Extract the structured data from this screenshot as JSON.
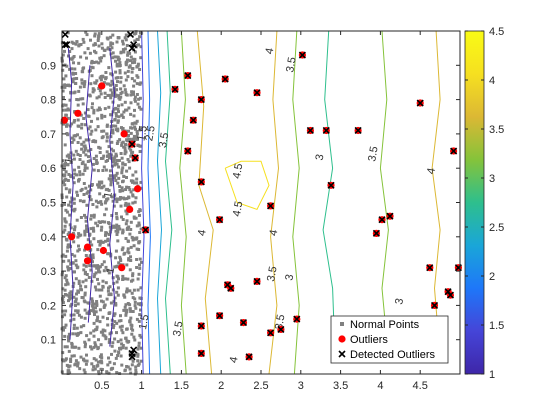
{
  "chart_data": {
    "type": "scatter",
    "title": "",
    "xlabel": "",
    "ylabel": "",
    "xlim": [
      0,
      5.0
    ],
    "ylim": [
      0,
      1.0
    ],
    "xticks": [
      "0.5",
      "1",
      "1.5",
      "2",
      "2.5",
      "3",
      "3.5",
      "4",
      "4.5"
    ],
    "yticks": [
      "0.1",
      "0.2",
      "0.3",
      "0.4",
      "0.5",
      "0.6",
      "0.7",
      "0.8",
      "0.9"
    ],
    "colorbar": {
      "range": [
        1,
        4.5
      ],
      "ticks": [
        "1",
        "1.5",
        "2",
        "2.5",
        "3",
        "3.5",
        "4",
        "4.5"
      ],
      "colormap": [
        "#3e26a8",
        "#4545d8",
        "#1e77f9",
        "#1aa6d8",
        "#2ebf8d",
        "#85c33a",
        "#dcb834",
        "#f6e020",
        "#f9fb15"
      ]
    },
    "legend": {
      "location": "bottom-right",
      "entries": [
        "Normal Points",
        "Outliers",
        "Detected Outliers"
      ]
    },
    "series": [
      {
        "name": "Normal Points",
        "marker": "square",
        "color": "#808080",
        "x_range": [
          0,
          1
        ],
        "y_range": [
          0,
          1
        ],
        "count": "dense"
      },
      {
        "name": "Outliers",
        "marker": "circle",
        "color": "#ff0000",
        "points": [
          [
            0.03,
            0.74
          ],
          [
            0.2,
            0.76
          ],
          [
            0.5,
            0.84
          ],
          [
            0.12,
            0.4
          ],
          [
            0.32,
            0.37
          ],
          [
            0.32,
            0.33
          ],
          [
            0.52,
            0.36
          ],
          [
            0.78,
            0.7
          ],
          [
            0.88,
            0.67
          ],
          [
            0.85,
            0.48
          ],
          [
            0.95,
            0.54
          ],
          [
            0.75,
            0.31
          ],
          [
            0.92,
            0.63
          ],
          [
            1.05,
            0.42
          ],
          [
            1.42,
            0.83
          ],
          [
            1.58,
            0.87
          ],
          [
            1.58,
            0.65
          ],
          [
            1.65,
            0.74
          ],
          [
            1.75,
            0.8
          ],
          [
            1.75,
            0.56
          ],
          [
            1.98,
            0.45
          ],
          [
            2.05,
            0.86
          ],
          [
            2.08,
            0.26
          ],
          [
            2.12,
            0.25
          ],
          [
            2.45,
            0.82
          ],
          [
            2.45,
            0.27
          ],
          [
            2.62,
            0.49
          ],
          [
            2.62,
            0.12
          ],
          [
            1.75,
            0.14
          ],
          [
            1.75,
            0.06
          ],
          [
            1.98,
            0.17
          ],
          [
            2.28,
            0.15
          ],
          [
            2.35,
            0.05
          ],
          [
            2.75,
            0.13
          ],
          [
            2.95,
            0.16
          ],
          [
            3.02,
            0.93
          ],
          [
            3.12,
            0.71
          ],
          [
            3.32,
            0.71
          ],
          [
            3.38,
            0.55
          ],
          [
            3.72,
            0.71
          ],
          [
            3.95,
            0.41
          ],
          [
            4.02,
            0.45
          ],
          [
            4.12,
            0.46
          ],
          [
            4.5,
            0.79
          ],
          [
            4.62,
            0.31
          ],
          [
            4.68,
            0.2
          ],
          [
            4.85,
            0.24
          ],
          [
            4.88,
            0.23
          ],
          [
            4.98,
            0.31
          ],
          [
            4.92,
            0.65
          ]
        ]
      },
      {
        "name": "Detected Outliers",
        "marker": "x",
        "color": "#000000",
        "points": [
          [
            0.04,
            0.99
          ],
          [
            0.04,
            0.96
          ],
          [
            0.06,
            0.96
          ],
          [
            0.86,
            0.99
          ],
          [
            0.88,
            0.95
          ],
          [
            0.9,
            0.96
          ],
          [
            0.88,
            0.06
          ],
          [
            0.9,
            0.07
          ],
          [
            0.88,
            0.05
          ],
          [
            1.42,
            0.83
          ],
          [
            1.58,
            0.87
          ],
          [
            1.58,
            0.65
          ],
          [
            1.65,
            0.74
          ],
          [
            1.75,
            0.8
          ],
          [
            1.75,
            0.56
          ],
          [
            1.98,
            0.45
          ],
          [
            2.05,
            0.86
          ],
          [
            2.08,
            0.26
          ],
          [
            2.12,
            0.25
          ],
          [
            2.45,
            0.82
          ],
          [
            2.45,
            0.27
          ],
          [
            2.62,
            0.49
          ],
          [
            2.62,
            0.12
          ],
          [
            1.75,
            0.14
          ],
          [
            1.75,
            0.06
          ],
          [
            1.98,
            0.17
          ],
          [
            2.28,
            0.15
          ],
          [
            2.35,
            0.05
          ],
          [
            2.75,
            0.13
          ],
          [
            2.95,
            0.16
          ],
          [
            3.02,
            0.93
          ],
          [
            3.12,
            0.71
          ],
          [
            3.32,
            0.71
          ],
          [
            3.38,
            0.55
          ],
          [
            3.72,
            0.71
          ],
          [
            3.95,
            0.41
          ],
          [
            4.02,
            0.45
          ],
          [
            4.12,
            0.46
          ],
          [
            4.5,
            0.79
          ],
          [
            4.62,
            0.31
          ],
          [
            4.68,
            0.2
          ],
          [
            4.85,
            0.24
          ],
          [
            4.88,
            0.23
          ],
          [
            4.98,
            0.31
          ],
          [
            4.92,
            0.65
          ],
          [
            1.05,
            0.42
          ],
          [
            0.88,
            0.67
          ],
          [
            0.92,
            0.63
          ]
        ]
      }
    ],
    "contours": [
      {
        "level": 1,
        "color": "#3e26a8",
        "points": [
          [
            0.08,
            0.95
          ],
          [
            0.12,
            0.85
          ],
          [
            0.1,
            0.7
          ],
          [
            0.14,
            0.55
          ],
          [
            0.1,
            0.4
          ],
          [
            0.14,
            0.25
          ],
          [
            0.1,
            0.1
          ]
        ]
      },
      {
        "level": 1,
        "color": "#3e26a8",
        "points": [
          [
            0.35,
            0.9
          ],
          [
            0.3,
            0.75
          ],
          [
            0.38,
            0.6
          ],
          [
            0.32,
            0.45
          ],
          [
            0.38,
            0.3
          ],
          [
            0.33,
            0.15
          ]
        ]
      },
      {
        "level": 1,
        "color": "#3e26a8",
        "points": [
          [
            0.6,
            0.95
          ],
          [
            0.66,
            0.82
          ],
          [
            0.6,
            0.68
          ],
          [
            0.66,
            0.52
          ],
          [
            0.6,
            0.38
          ],
          [
            0.66,
            0.22
          ],
          [
            0.6,
            0.08
          ]
        ]
      },
      {
        "level": 1.5,
        "color": "#4545d8",
        "points": [
          [
            1.0,
            1.0
          ],
          [
            1.02,
            0.8
          ],
          [
            1.0,
            0.6
          ],
          [
            1.03,
            0.4
          ],
          [
            1.0,
            0.2
          ],
          [
            1.02,
            0.0
          ]
        ]
      },
      {
        "level": 2,
        "color": "#1e77f9",
        "points": [
          [
            1.08,
            1.0
          ],
          [
            1.1,
            0.8
          ],
          [
            1.08,
            0.6
          ],
          [
            1.11,
            0.4
          ],
          [
            1.08,
            0.2
          ],
          [
            1.1,
            0.0
          ]
        ]
      },
      {
        "level": 2.5,
        "color": "#1aa6d8",
        "points": [
          [
            1.2,
            1.0
          ],
          [
            1.24,
            0.82
          ],
          [
            1.2,
            0.62
          ],
          [
            1.25,
            0.42
          ],
          [
            1.2,
            0.22
          ],
          [
            1.24,
            0.0
          ]
        ]
      },
      {
        "level": 3,
        "color": "#2ebf8d",
        "points": [
          [
            1.32,
            1.0
          ],
          [
            1.36,
            0.82
          ],
          [
            1.3,
            0.62
          ],
          [
            1.38,
            0.42
          ],
          [
            1.3,
            0.22
          ],
          [
            1.36,
            0.0
          ]
        ]
      },
      {
        "level": 3.5,
        "color": "#85c33a",
        "points": [
          [
            1.5,
            1.0
          ],
          [
            1.55,
            0.8
          ],
          [
            1.48,
            0.6
          ],
          [
            1.56,
            0.4
          ],
          [
            1.5,
            0.2
          ],
          [
            1.56,
            0.0
          ]
        ]
      },
      {
        "level": 4,
        "color": "#dcb834",
        "points": [
          [
            1.7,
            1.0
          ],
          [
            1.78,
            0.78
          ],
          [
            1.72,
            0.55
          ],
          [
            1.9,
            0.42
          ],
          [
            1.8,
            0.22
          ],
          [
            1.88,
            0.0
          ]
        ]
      },
      {
        "level": 4.5,
        "color": "#f6e020",
        "points": [
          [
            2.05,
            0.6
          ],
          [
            2.2,
            0.5
          ],
          [
            2.45,
            0.48
          ],
          [
            2.6,
            0.55
          ],
          [
            2.5,
            0.62
          ],
          [
            2.25,
            0.62
          ],
          [
            2.05,
            0.6
          ]
        ]
      },
      {
        "level": 4,
        "color": "#dcb834",
        "points": [
          [
            2.7,
            1.0
          ],
          [
            2.65,
            0.8
          ],
          [
            2.72,
            0.6
          ],
          [
            2.62,
            0.4
          ],
          [
            2.7,
            0.2
          ],
          [
            2.6,
            0.0
          ]
        ]
      },
      {
        "level": 3.5,
        "color": "#85c33a",
        "points": [
          [
            2.95,
            1.0
          ],
          [
            2.9,
            0.8
          ],
          [
            2.98,
            0.6
          ],
          [
            2.9,
            0.4
          ],
          [
            2.98,
            0.2
          ],
          [
            2.92,
            0.0
          ]
        ]
      },
      {
        "level": 3,
        "color": "#2ebf8d",
        "points": [
          [
            3.35,
            1.0
          ],
          [
            3.3,
            0.8
          ],
          [
            3.4,
            0.6
          ],
          [
            3.28,
            0.42
          ],
          [
            3.4,
            0.25
          ],
          [
            3.42,
            0.12
          ],
          [
            3.9,
            0.1
          ]
        ]
      },
      {
        "level": 3.5,
        "color": "#85c33a",
        "points": [
          [
            4.02,
            1.0
          ],
          [
            4.08,
            0.8
          ],
          [
            4.0,
            0.6
          ],
          [
            4.1,
            0.42
          ],
          [
            4.02,
            0.25
          ],
          [
            4.1,
            0.05
          ]
        ]
      },
      {
        "level": 4,
        "color": "#dcb834",
        "points": [
          [
            4.7,
            1.0
          ],
          [
            4.75,
            0.8
          ],
          [
            4.65,
            0.6
          ],
          [
            4.75,
            0.42
          ],
          [
            4.68,
            0.25
          ],
          [
            4.75,
            0.05
          ]
        ]
      }
    ],
    "contour_labels": [
      {
        "text": "1",
        "x": 0.13,
        "y": 0.62
      },
      {
        "text": "1",
        "x": 0.62,
        "y": 0.52
      },
      {
        "text": "1",
        "x": 0.65,
        "y": 0.3
      },
      {
        "text": "1.5",
        "x": 1.05,
        "y": 0.7
      },
      {
        "text": "1.5",
        "x": 1.07,
        "y": 0.15
      },
      {
        "text": "2.5",
        "x": 1.15,
        "y": 0.7
      },
      {
        "text": "3.5",
        "x": 1.32,
        "y": 0.68
      },
      {
        "text": "3.5",
        "x": 1.5,
        "y": 0.13
      },
      {
        "text": "4",
        "x": 1.8,
        "y": 0.41
      },
      {
        "text": "4.5",
        "x": 2.25,
        "y": 0.59
      },
      {
        "text": "4.5",
        "x": 2.25,
        "y": 0.48
      },
      {
        "text": "4",
        "x": 2.7,
        "y": 0.41
      },
      {
        "text": "4",
        "x": 2.65,
        "y": 0.94
      },
      {
        "text": "3.5",
        "x": 2.92,
        "y": 0.9
      },
      {
        "text": "3.5",
        "x": 2.68,
        "y": 0.29
      },
      {
        "text": "3.5",
        "x": 2.78,
        "y": 0.15
      },
      {
        "text": "3",
        "x": 3.28,
        "y": 0.63
      },
      {
        "text": "3.5",
        "x": 3.95,
        "y": 0.64
      },
      {
        "text": "4",
        "x": 4.68,
        "y": 0.59
      },
      {
        "text": "3",
        "x": 4.28,
        "y": 0.21
      },
      {
        "text": "4",
        "x": 2.2,
        "y": 0.04
      },
      {
        "text": "3",
        "x": 2.9,
        "y": 0.28
      }
    ]
  }
}
